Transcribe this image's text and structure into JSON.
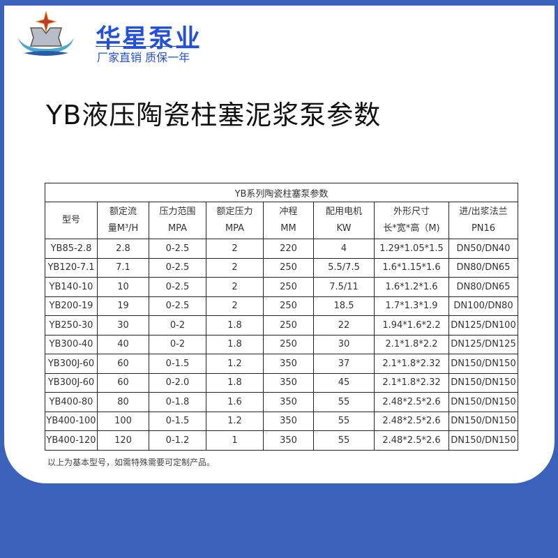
{
  "brand": {
    "name": "华星泵业",
    "slogan": "厂家直销 质保一年",
    "colors": {
      "brand": "#2450d8",
      "background": "#3a62bb"
    }
  },
  "title": "YB液压陶瓷柱塞泥浆泵参数",
  "table": {
    "caption": "YB系列陶瓷柱塞泵参数",
    "headers": [
      [
        "型号",
        ""
      ],
      [
        "额定流",
        "量M³/H"
      ],
      [
        "压力范围",
        "MPA"
      ],
      [
        "额定压力",
        "MPA"
      ],
      [
        "冲程",
        "MM"
      ],
      [
        "配用电机",
        "KW"
      ],
      [
        "外形尺寸",
        "长*宽*高（M)"
      ],
      [
        "进/出浆法兰",
        "PN16"
      ]
    ],
    "rows": [
      [
        "YB85-2.8",
        "2.8",
        "0-2.5",
        "2",
        "220",
        "4",
        "1.29*1.05*1.5",
        "DN50/DN40"
      ],
      [
        "YB120-7.1",
        "7.1",
        "0-2.5",
        "2",
        "250",
        "5.5/7.5",
        "1.6*1.15*1.6",
        "DN80/DN65"
      ],
      [
        "YB140-10",
        "10",
        "0-2.5",
        "2",
        "250",
        "7.5/11",
        "1.6*1.2*1.6",
        "DN80/DN65"
      ],
      [
        "YB200-19",
        "19",
        "0-2.5",
        "2",
        "250",
        "18.5",
        "1.7*1.3*1.9",
        "DN100/DN80"
      ],
      [
        "YB250-30",
        "30",
        "0-2",
        "1.8",
        "250",
        "22",
        "1.94*1.6*2.2",
        "DN125/DN100"
      ],
      [
        "YB300-40",
        "40",
        "0-2",
        "1.8",
        "250",
        "30",
        "2.1*1.8*2.2",
        "DN125/DN125"
      ],
      [
        "YB300J-60",
        "60",
        "0-1.5",
        "1.2",
        "350",
        "37",
        "2.1*1.8*2.32",
        "DN150/DN150"
      ],
      [
        "YB300J-60",
        "60",
        "0-2.0",
        "1.8",
        "350",
        "45",
        "2.1*1.8*2.32",
        "DN150/DN150"
      ],
      [
        "YB400-80",
        "80",
        "0-1.8",
        "1.6",
        "350",
        "55",
        "2.48*2.5*2.6",
        "DN150/DN150"
      ],
      [
        "YB400-100",
        "100",
        "0-1.5",
        "1.2",
        "350",
        "55",
        "2.48*2.5*2.6",
        "DN150/DN150"
      ],
      [
        "YB400-120",
        "120",
        "0-1.2",
        "1",
        "350",
        "55",
        "2.48*2.5*2.6",
        "DN150/DN150"
      ]
    ]
  },
  "note": "以上为基本型号，如需特殊需要可定制产品。"
}
